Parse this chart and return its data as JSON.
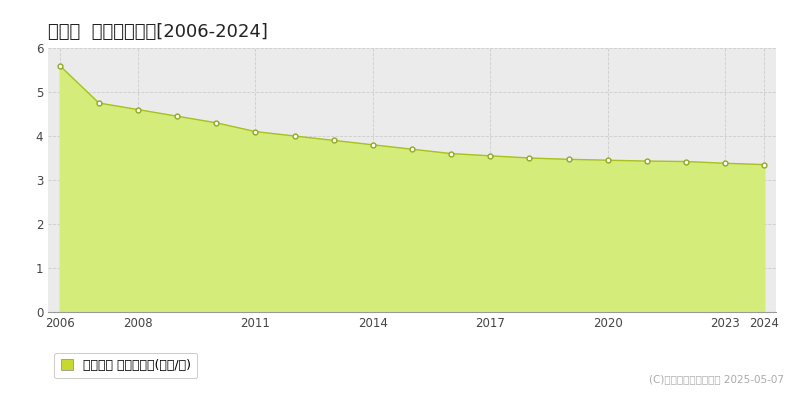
{
  "title": "北栄町  基準地価推移[2006-2024]",
  "years": [
    2006,
    2007,
    2008,
    2009,
    2010,
    2011,
    2012,
    2013,
    2014,
    2015,
    2016,
    2017,
    2018,
    2019,
    2020,
    2021,
    2022,
    2023,
    2024
  ],
  "values": [
    5.6,
    4.75,
    4.6,
    4.45,
    4.3,
    4.1,
    4.0,
    3.9,
    3.8,
    3.7,
    3.6,
    3.55,
    3.5,
    3.47,
    3.45,
    3.43,
    3.42,
    3.38,
    3.35
  ],
  "ylim": [
    0,
    6
  ],
  "yticks": [
    0,
    1,
    2,
    3,
    4,
    5,
    6
  ],
  "xticks": [
    2006,
    2008,
    2011,
    2014,
    2017,
    2020,
    2023,
    2024
  ],
  "xlim": [
    2005.7,
    2024.3
  ],
  "area_color": "#d4ed7a",
  "line_color": "#a8c020",
  "marker_facecolor": "#ffffff",
  "marker_edgecolor": "#90a820",
  "grid_color": "#cccccc",
  "background_color": "#ffffff",
  "plot_bg_color": "#ebebeb",
  "legend_label": "基準地価 平均坪単価(万円/坪)",
  "legend_marker_color": "#c8d830",
  "copyright_text": "(C)土地価格ドットコム 2025-05-07",
  "title_fontsize": 13,
  "tick_fontsize": 8.5,
  "legend_fontsize": 9,
  "copyright_fontsize": 7.5
}
